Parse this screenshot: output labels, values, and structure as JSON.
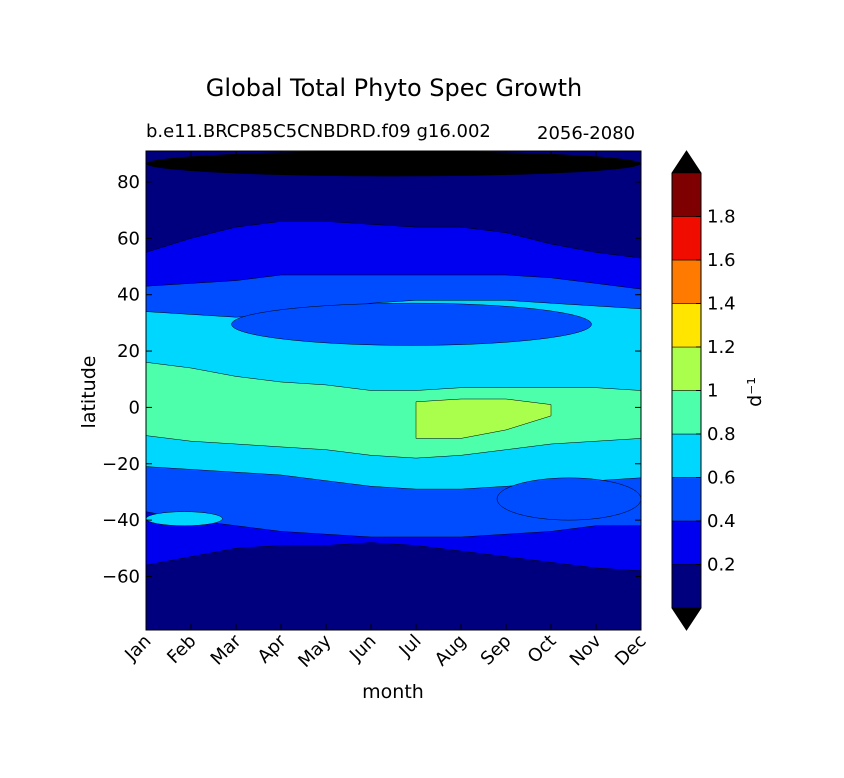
{
  "chart_data": {
    "type": "contourf",
    "title": "Global Total Phyto Spec Growth",
    "subtitle_left": "b.e11.BRCP85C5CNBDRD.f09 g16.002",
    "subtitle_right": "2056-2080",
    "xlabel": "month",
    "ylabel": "latitude",
    "x_ticks": [
      "Jan",
      "Feb",
      "Mar",
      "Apr",
      "May",
      "Jun",
      "Jul",
      "Aug",
      "Sep",
      "Oct",
      "Nov",
      "Dec"
    ],
    "ylim": [
      -79,
      91
    ],
    "y_ticks": [
      80,
      60,
      40,
      20,
      0,
      -20,
      -40,
      -60
    ],
    "y_tick_labels": [
      "80",
      "60",
      "40",
      "20",
      "0",
      "−20",
      "−40",
      "−60"
    ],
    "colorbar": {
      "label": "d⁻¹",
      "extend": "both",
      "levels": [
        0,
        0.2,
        0.4,
        0.6,
        0.8,
        1.0,
        1.2,
        1.4,
        1.6,
        1.8,
        2.0
      ],
      "tick_labels": [
        "0.2",
        "0.4",
        "0.6",
        "0.8",
        "1",
        "1.2",
        "1.4",
        "1.6",
        "1.8"
      ],
      "colors": [
        "#00007f",
        "#0000f1",
        "#004cff",
        "#00d7ff",
        "#4dffaa",
        "#aaff4d",
        "#ffe500",
        "#ff7a00",
        "#f10c00",
        "#7f0000"
      ],
      "under_color": "#000000",
      "over_color": "#000000"
    },
    "bands": [
      {
        "level_index": 1,
        "lat_north": [
          55,
          60,
          64,
          66,
          66,
          65,
          64,
          64,
          62,
          58,
          55,
          53
        ],
        "lat_south": [
          -56,
          -53,
          -50,
          -49,
          -49,
          -48,
          -49,
          -51,
          -53,
          -55,
          -57,
          -58
        ]
      },
      {
        "level_index": 2,
        "lat_north": [
          43,
          44,
          45,
          47,
          47,
          47,
          47,
          47,
          47,
          46,
          44,
          42
        ],
        "lat_south": [
          -37,
          -40,
          -42,
          -44,
          -45,
          -46,
          -46,
          -46,
          -45,
          -44,
          -42,
          -42
        ]
      },
      {
        "level_index": 3,
        "lat_north": [
          34,
          33,
          32,
          33,
          35,
          37,
          38,
          38,
          38,
          37,
          36,
          35
        ],
        "lat_south": [
          -21,
          -22,
          -23,
          -24,
          -26,
          -28,
          -29,
          -29,
          -28,
          -27,
          -26,
          -25
        ]
      },
      {
        "level_index": 4,
        "lat_north": [
          16,
          14,
          11,
          9,
          8,
          6,
          6,
          7,
          7,
          7,
          7,
          6
        ],
        "lat_south": [
          -10,
          -12,
          -13,
          -14,
          -15,
          -17,
          -18,
          -17,
          -15,
          -13,
          -12,
          -11
        ]
      },
      {
        "level_index": 5,
        "lat_north": [
          null,
          null,
          null,
          null,
          null,
          null,
          2,
          3,
          3,
          1,
          null,
          null
        ],
        "lat_south": [
          null,
          null,
          null,
          null,
          null,
          null,
          -11,
          -11,
          -8,
          -3,
          null,
          null
        ]
      }
    ],
    "features": [
      {
        "level_index": 2,
        "name": "nh-subtropical-low",
        "months_from": 1.9,
        "months_to": 9.9,
        "lat_north": 37,
        "lat_south": 22
      },
      {
        "level_index": 2,
        "name": "sh-autumn-low",
        "months_from": 7.8,
        "months_to": 11,
        "lat_north": -25,
        "lat_south": -40
      },
      {
        "level_index": 3,
        "name": "sh-feb-tongue",
        "months_from": 0,
        "months_to": 1.7,
        "lat_north": -37,
        "lat_south": -42
      },
      {
        "level_index": 0,
        "name": "arctic-winter-minimum",
        "months_from": 0,
        "months_to": 11,
        "lat_north": 91,
        "lat_south": 82
      }
    ]
  }
}
